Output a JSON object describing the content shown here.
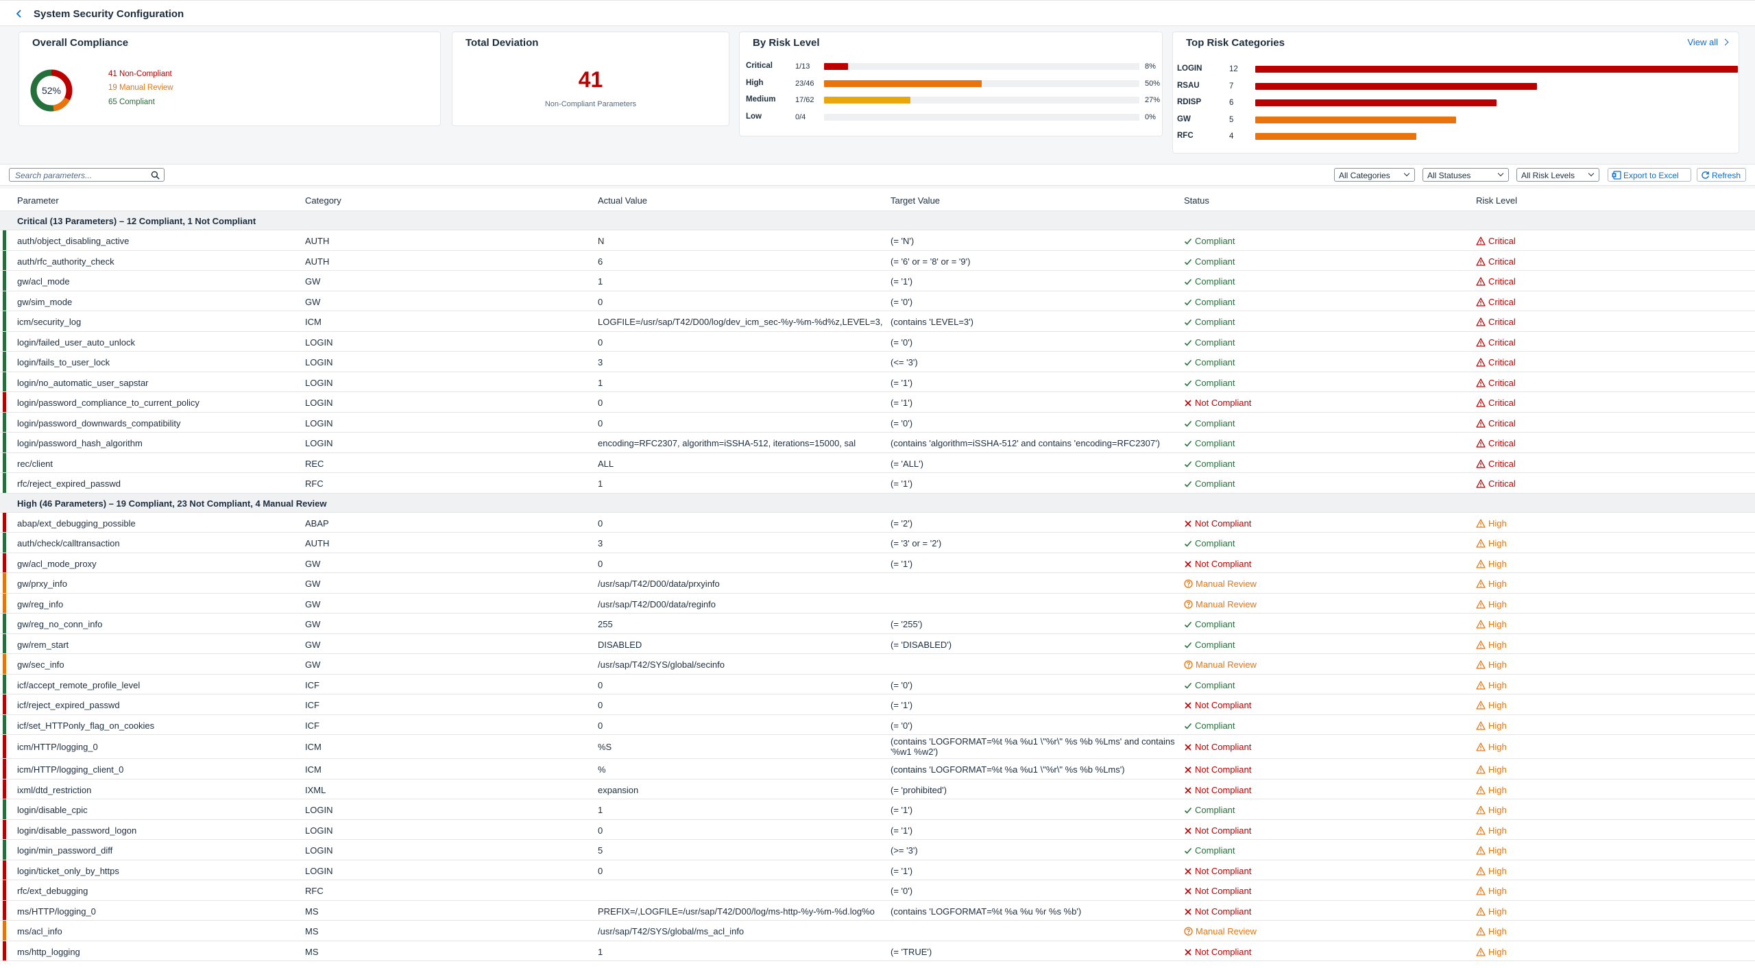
{
  "header": {
    "title": "System Security Configuration"
  },
  "colors": {
    "noncompliant": "#bb0000",
    "review": "#e9730c",
    "compliant": "#256f3a",
    "medium": "#e8a60f",
    "link": "#0a6ed1"
  },
  "overall": {
    "title": "Overall Compliance",
    "percent_label": "52%",
    "noncompliant_label": "41 Non-Compliant",
    "review_label": "19 Manual Review",
    "compliant_label": "65 Compliant",
    "segments": {
      "noncompliant": 41,
      "review": 19,
      "compliant": 65
    }
  },
  "deviation": {
    "title": "Total Deviation",
    "value": "41",
    "subtitle": "Non-Compliant Parameters"
  },
  "risk_level": {
    "title": "By Risk Level",
    "rows": [
      {
        "label": "Critical",
        "count": "1/13",
        "pct": "8%",
        "fraction": 0.077
      },
      {
        "label": "High",
        "count": "23/46",
        "pct": "50%",
        "fraction": 0.5
      },
      {
        "label": "Medium",
        "count": "17/62",
        "pct": "27%",
        "fraction": 0.274
      },
      {
        "label": "Low",
        "count": "0/4",
        "pct": "0%",
        "fraction": 0
      }
    ]
  },
  "top_categories": {
    "title": "Top Risk Categories",
    "view_all": "View all",
    "rows": [
      {
        "label": "LOGIN",
        "count": "12",
        "value": 12
      },
      {
        "label": "RSAU",
        "count": "7",
        "value": 7
      },
      {
        "label": "RDISP",
        "count": "6",
        "value": 6
      },
      {
        "label": "GW",
        "count": "5",
        "value": 5
      },
      {
        "label": "RFC",
        "count": "4",
        "value": 4
      }
    ]
  },
  "toolbar": {
    "search_placeholder": "Search parameters...",
    "category_select": "All Categories",
    "status_select": "All Statuses",
    "risk_select": "All Risk Levels",
    "export_label": "Export to Excel",
    "refresh_label": "Refresh"
  },
  "table": {
    "columns": [
      "Parameter",
      "Category",
      "Actual Value",
      "Target Value",
      "Status",
      "Risk Level"
    ],
    "groups": [
      {
        "title": "Critical (13 Parameters) – 12 Compliant, 1 Not Compliant",
        "risk": "Critical",
        "rows": [
          {
            "param": "auth/object_disabling_active",
            "category": "AUTH",
            "actual": "N",
            "target": "(= 'N')",
            "status": "Compliant"
          },
          {
            "param": "auth/rfc_authority_check",
            "category": "AUTH",
            "actual": "6",
            "target": "(= '6' or = '8' or = '9')",
            "status": "Compliant"
          },
          {
            "param": "gw/acl_mode",
            "category": "GW",
            "actual": "1",
            "target": "(= '1')",
            "status": "Compliant"
          },
          {
            "param": "gw/sim_mode",
            "category": "GW",
            "actual": "0",
            "target": "(= '0')",
            "status": "Compliant"
          },
          {
            "param": "icm/security_log",
            "category": "ICM",
            "actual": "LOGFILE=/usr/sap/T42/D00/log/dev_icm_sec-%y-%m-%d%z,LEVEL=3,",
            "target": "(contains 'LEVEL=3')",
            "status": "Compliant"
          },
          {
            "param": "login/failed_user_auto_unlock",
            "category": "LOGIN",
            "actual": "0",
            "target": "(= '0')",
            "status": "Compliant"
          },
          {
            "param": "login/fails_to_user_lock",
            "category": "LOGIN",
            "actual": "3",
            "target": "(<= '3')",
            "status": "Compliant"
          },
          {
            "param": "login/no_automatic_user_sapstar",
            "category": "LOGIN",
            "actual": "1",
            "target": "(= '1')",
            "status": "Compliant"
          },
          {
            "param": "login/password_compliance_to_current_policy",
            "category": "LOGIN",
            "actual": "0",
            "target": "(= '1')",
            "status": "Not Compliant"
          },
          {
            "param": "login/password_downwards_compatibility",
            "category": "LOGIN",
            "actual": "0",
            "target": "(= '0')",
            "status": "Compliant"
          },
          {
            "param": "login/password_hash_algorithm",
            "category": "LOGIN",
            "actual": "encoding=RFC2307, algorithm=iSSHA-512, iterations=15000, sal",
            "target": "(contains 'algorithm=iSSHA-512' and contains 'encoding=RFC2307')",
            "status": "Compliant"
          },
          {
            "param": "rec/client",
            "category": "REC",
            "actual": "ALL",
            "target": "(= 'ALL')",
            "status": "Compliant"
          },
          {
            "param": "rfc/reject_expired_passwd",
            "category": "RFC",
            "actual": "1",
            "target": "(= '1')",
            "status": "Compliant"
          }
        ]
      },
      {
        "title": "High (46 Parameters) – 19 Compliant, 23 Not Compliant, 4 Manual Review",
        "risk": "High",
        "rows": [
          {
            "param": "abap/ext_debugging_possible",
            "category": "ABAP",
            "actual": "0",
            "target": "(= '2')",
            "status": "Not Compliant"
          },
          {
            "param": "auth/check/calltransaction",
            "category": "AUTH",
            "actual": "3",
            "target": "(= '3' or = '2')",
            "status": "Compliant"
          },
          {
            "param": "gw/acl_mode_proxy",
            "category": "GW",
            "actual": "0",
            "target": "(= '1')",
            "status": "Not Compliant"
          },
          {
            "param": "gw/prxy_info",
            "category": "GW",
            "actual": "/usr/sap/T42/D00/data/prxyinfo",
            "target": "",
            "status": "Manual Review"
          },
          {
            "param": "gw/reg_info",
            "category": "GW",
            "actual": "/usr/sap/T42/D00/data/reginfo",
            "target": "",
            "status": "Manual Review"
          },
          {
            "param": "gw/reg_no_conn_info",
            "category": "GW",
            "actual": "255",
            "target": "(= '255')",
            "status": "Compliant"
          },
          {
            "param": "gw/rem_start",
            "category": "GW",
            "actual": "DISABLED",
            "target": "(= 'DISABLED')",
            "status": "Compliant"
          },
          {
            "param": "gw/sec_info",
            "category": "GW",
            "actual": "/usr/sap/T42/SYS/global/secinfo",
            "target": "",
            "status": "Manual Review"
          },
          {
            "param": "icf/accept_remote_profile_level",
            "category": "ICF",
            "actual": "0",
            "target": "(= '0')",
            "status": "Compliant"
          },
          {
            "param": "icf/reject_expired_passwd",
            "category": "ICF",
            "actual": "0",
            "target": "(= '1')",
            "status": "Not Compliant"
          },
          {
            "param": "icf/set_HTTPonly_flag_on_cookies",
            "category": "ICF",
            "actual": "0",
            "target": "(= '0')",
            "status": "Compliant"
          },
          {
            "param": "icm/HTTP/logging_0",
            "category": "ICM",
            "actual": "%S",
            "target": "(contains 'LOGFORMAT=%t %a %u1 \\\"%r\\\" %s %b %Lms' and contains '%w1 %w2')",
            "status": "Not Compliant"
          },
          {
            "param": "icm/HTTP/logging_client_0",
            "category": "ICM",
            "actual": "%",
            "target": "(contains 'LOGFORMAT=%t %a %u1 \\\"%r\\\" %s %b %Lms')",
            "status": "Not Compliant"
          },
          {
            "param": "ixml/dtd_restriction",
            "category": "IXML",
            "actual": "expansion",
            "target": "(= 'prohibited')",
            "status": "Not Compliant"
          },
          {
            "param": "login/disable_cpic",
            "category": "LOGIN",
            "actual": "1",
            "target": "(= '1')",
            "status": "Compliant"
          },
          {
            "param": "login/disable_password_logon",
            "category": "LOGIN",
            "actual": "0",
            "target": "(= '1')",
            "status": "Not Compliant"
          },
          {
            "param": "login/min_password_diff",
            "category": "LOGIN",
            "actual": "5",
            "target": "(>= '3')",
            "status": "Compliant"
          },
          {
            "param": "login/ticket_only_by_https",
            "category": "LOGIN",
            "actual": "0",
            "target": "(= '1')",
            "status": "Not Compliant"
          },
          {
            "param": "rfc/ext_debugging",
            "category": "RFC",
            "actual": "",
            "target": "(= '0')",
            "status": "Not Compliant"
          },
          {
            "param": "ms/HTTP/logging_0",
            "category": "MS",
            "actual": "PREFIX=/,LOGFILE=/usr/sap/T42/D00/log/ms-http-%y-%m-%d.log%o",
            "target": "(contains 'LOGFORMAT=%t %a %u %r %s %b')",
            "status": "Not Compliant"
          },
          {
            "param": "ms/acl_info",
            "category": "MS",
            "actual": "/usr/sap/T42/SYS/global/ms_acl_info",
            "target": "",
            "status": "Manual Review"
          },
          {
            "param": "ms/http_logging",
            "category": "MS",
            "actual": "1",
            "target": "(= 'TRUE')",
            "status": "Not Compliant"
          }
        ]
      }
    ]
  }
}
